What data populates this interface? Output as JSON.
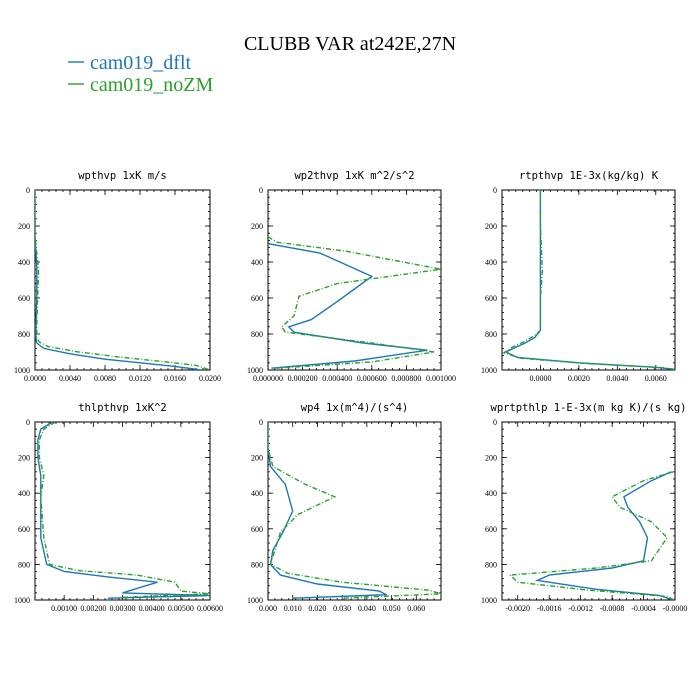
{
  "figure": {
    "title": "CLUBB VAR at242E,27N",
    "legend": [
      {
        "label": "cam019_dflt",
        "color": "#1f77b4"
      },
      {
        "label": "cam019_noZM",
        "color": "#2ca02c"
      }
    ]
  },
  "chart_data": [
    {
      "type": "line",
      "title": "wpthvp  1xK m/s",
      "xlim": [
        0,
        0.02
      ],
      "xticks": [
        "0.0000",
        "0.0040",
        "0.0080",
        "0.0120",
        "0.0160",
        "0.0200"
      ],
      "xtick_values": [
        0,
        0.004,
        0.008,
        0.012,
        0.016,
        0.02
      ],
      "ylim": [
        1000,
        0
      ],
      "yticks": [
        "0",
        "200",
        "400",
        "600",
        "800",
        "1000"
      ],
      "yticks_values": [
        0,
        200,
        400,
        600,
        800,
        1000
      ],
      "series": [
        {
          "name": "cam019_dflt",
          "color": "#1f77b4",
          "x": [
            0.0,
            0.0,
            0.0,
            0.0001,
            0.0002,
            0.0002,
            0.0002,
            0.0001,
            0.0001,
            0.0002,
            0.001,
            0.004,
            0.008,
            0.012,
            0.016,
            0.019
          ],
          "y": [
            0,
            100,
            250,
            350,
            430,
            470,
            600,
            750,
            820,
            850,
            880,
            910,
            940,
            960,
            980,
            1000
          ]
        },
        {
          "name": "cam019_noZM",
          "color": "#2ca02c",
          "x": [
            0.0,
            0.0,
            0.0,
            0.0002,
            0.0004,
            0.0004,
            0.0003,
            0.0002,
            0.0002,
            0.0005,
            0.0015,
            0.005,
            0.01,
            0.015,
            0.0185,
            0.02
          ],
          "y": [
            0,
            100,
            250,
            350,
            430,
            470,
            600,
            750,
            820,
            845,
            870,
            900,
            930,
            955,
            975,
            1000
          ]
        }
      ]
    },
    {
      "type": "line",
      "title": "wp2thvp  1xK m^2/s^2",
      "xlim": [
        0,
        0.001
      ],
      "xticks": [
        "0.000000",
        "0.000200",
        "0.000400",
        "0.000600",
        "0.000800",
        "0.001000"
      ],
      "xtick_values": [
        0,
        0.0002,
        0.0004,
        0.0006,
        0.0008,
        0.001
      ],
      "ylim": [
        1000,
        0
      ],
      "yticks": [
        "0",
        "200",
        "400",
        "600",
        "800",
        "1000"
      ],
      "yticks_values": [
        0,
        200,
        400,
        600,
        800,
        1000
      ],
      "series": [
        {
          "name": "cam019_dflt",
          "color": "#1f77b4",
          "x": [
            0.0,
            1e-05,
            0.0003,
            0.0006,
            0.0005,
            0.0004,
            0.00025,
            0.00012,
            0.00015,
            0.00055,
            0.00092,
            0.0005,
            2e-05
          ],
          "y": [
            290,
            300,
            350,
            480,
            550,
            620,
            720,
            760,
            790,
            850,
            890,
            950,
            990
          ]
        },
        {
          "name": "cam019_noZM",
          "color": "#2ca02c",
          "x": [
            0.0,
            5e-05,
            0.00045,
            0.001,
            0.0004,
            0.00018,
            0.00015,
            8e-05,
            0.0001,
            0.0006,
            0.00096,
            0.0006,
            5e-05
          ],
          "y": [
            260,
            290,
            340,
            440,
            520,
            590,
            700,
            760,
            790,
            850,
            900,
            955,
            990
          ]
        }
      ]
    },
    {
      "type": "line",
      "title": "rtpthvp  1E-3x(kg/kg) K",
      "xlim": [
        -0.002,
        0.007
      ],
      "xticks": [
        "0.0000",
        "0.0020",
        "0.0040",
        "0.0060"
      ],
      "xtick_values": [
        0,
        0.002,
        0.004,
        0.006
      ],
      "ylim": [
        1000,
        0
      ],
      "yticks": [
        "0",
        "200",
        "400",
        "600",
        "800",
        "1000"
      ],
      "yticks_values": [
        0,
        200,
        400,
        600,
        800,
        1000
      ],
      "series": [
        {
          "name": "cam019_dflt",
          "color": "#1f77b4",
          "x": [
            0.0,
            0.0,
            0.0,
            0.0,
            0.0,
            -0.0003,
            -0.0008,
            -0.0014,
            -0.0018,
            -0.0012,
            0.002,
            0.006,
            0.0072
          ],
          "y": [
            0,
            200,
            450,
            600,
            780,
            820,
            850,
            880,
            900,
            930,
            960,
            985,
            1000
          ]
        },
        {
          "name": "cam019_noZM",
          "color": "#2ca02c",
          "x": [
            0.0,
            0.0,
            0.0001,
            0.0,
            0.0,
            -0.0004,
            -0.0009,
            -0.0015,
            -0.0019,
            -0.001,
            0.0025,
            0.0065,
            0.0072
          ],
          "y": [
            0,
            200,
            450,
            600,
            780,
            815,
            845,
            875,
            905,
            935,
            965,
            988,
            1000
          ]
        }
      ]
    },
    {
      "type": "line",
      "title": "thlpthvp  1xK^2",
      "xlim": [
        0,
        0.006
      ],
      "xticks": [
        "0.00100",
        "0.00200",
        "0.00300",
        "0.00400",
        "0.00500",
        "0.00600"
      ],
      "xtick_values": [
        0.001,
        0.002,
        0.003,
        0.004,
        0.005,
        0.006
      ],
      "ylim": [
        1000,
        0
      ],
      "yticks": [
        "0",
        "200",
        "400",
        "600",
        "800",
        "1000"
      ],
      "yticks_values": [
        0,
        200,
        400,
        600,
        800,
        1000
      ],
      "series": [
        {
          "name": "cam019_dflt",
          "color": "#1f77b4",
          "x": [
            0.0006,
            0.0002,
            0.0001,
            0.0001,
            0.0002,
            0.0002,
            0.0002,
            0.0004,
            0.001,
            0.0025,
            0.0042,
            0.003,
            0.006,
            0.0025
          ],
          "y": [
            0,
            40,
            100,
            200,
            300,
            420,
            650,
            800,
            840,
            870,
            900,
            960,
            975,
            990
          ]
        },
        {
          "name": "cam019_noZM",
          "color": "#2ca02c",
          "x": [
            0.0007,
            0.0003,
            0.00015,
            0.00015,
            0.0003,
            0.0002,
            0.0003,
            0.0005,
            0.0015,
            0.0035,
            0.0048,
            0.005,
            0.006,
            0.003
          ],
          "y": [
            0,
            40,
            100,
            200,
            300,
            420,
            650,
            800,
            835,
            860,
            900,
            950,
            965,
            985
          ]
        }
      ]
    },
    {
      "type": "line",
      "title": "wp4  1x(m^4)/(s^4)",
      "xlim": [
        0,
        0.07
      ],
      "xticks": [
        "0.000",
        "0.010",
        "0.020",
        "0.030",
        "0.040",
        "0.050",
        "0.060"
      ],
      "xtick_values": [
        0,
        0.01,
        0.02,
        0.03,
        0.04,
        0.05,
        0.06
      ],
      "ylim": [
        1000,
        0
      ],
      "yticks": [
        "0",
        "200",
        "400",
        "600",
        "800",
        "1000"
      ],
      "yticks_values": [
        0,
        200,
        400,
        600,
        800,
        1000
      ],
      "series": [
        {
          "name": "cam019_dflt",
          "color": "#1f77b4",
          "x": [
            0.0,
            0.0,
            0.001,
            0.007,
            0.01,
            0.006,
            0.002,
            0.001,
            0.005,
            0.02,
            0.045,
            0.048,
            0.01
          ],
          "y": [
            0,
            150,
            250,
            350,
            500,
            620,
            720,
            800,
            860,
            910,
            950,
            970,
            990
          ]
        },
        {
          "name": "cam019_noZM",
          "color": "#2ca02c",
          "x": [
            0.0,
            0.0,
            0.002,
            0.015,
            0.027,
            0.012,
            0.005,
            0.001,
            0.008,
            0.03,
            0.065,
            0.07,
            0.03
          ],
          "y": [
            0,
            150,
            250,
            350,
            420,
            520,
            620,
            800,
            850,
            900,
            945,
            965,
            990
          ]
        }
      ]
    },
    {
      "type": "line",
      "title": "wprtpthlp  1-E-3x(m kg K)/(s kg)",
      "xlim": [
        -0.0022,
        0.0
      ],
      "xticks": [
        "-0.0020",
        "-0.0016",
        "-0.0012",
        "-0.0008",
        "-0.0004",
        "-0.0000"
      ],
      "xtick_values": [
        -0.002,
        -0.0016,
        -0.0012,
        -0.0008,
        -0.0004,
        0.0
      ],
      "ylim": [
        1000,
        0
      ],
      "yticks": [
        "0",
        "200",
        "400",
        "600",
        "800",
        "1000"
      ],
      "yticks_values": [
        0,
        200,
        400,
        600,
        800,
        1000
      ],
      "series": [
        {
          "name": "cam019_dflt",
          "color": "#1f77b4",
          "x": [
            -5e-05,
            -0.0003,
            -0.00065,
            -0.0006,
            -0.00045,
            -0.00035,
            -0.0004,
            -0.0008,
            -0.0016,
            -0.00175,
            -0.001,
            -0.0002,
            -2e-05
          ],
          "y": [
            280,
            330,
            420,
            480,
            560,
            650,
            780,
            820,
            860,
            890,
            940,
            975,
            1000
          ]
        },
        {
          "name": "cam019_noZM",
          "color": "#2ca02c",
          "x": [
            -2e-05,
            -0.0004,
            -0.0008,
            -0.0007,
            -0.0003,
            -0.0001,
            -0.0003,
            -0.001,
            -0.0021,
            -0.002,
            -0.0011,
            -0.0001,
            -1e-05
          ],
          "y": [
            280,
            330,
            420,
            480,
            560,
            650,
            780,
            820,
            860,
            900,
            945,
            980,
            1000
          ]
        }
      ]
    }
  ]
}
